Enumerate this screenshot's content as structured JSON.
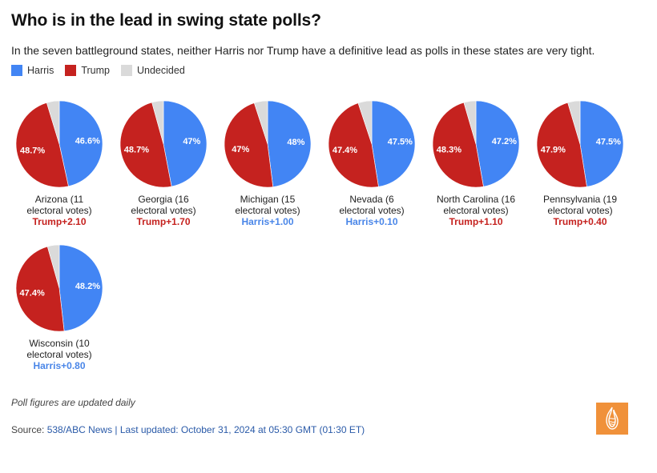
{
  "header": {
    "title": "Who is in the lead in swing state polls?",
    "subtitle": "In the seven battleground states, neither Harris nor Trump have a definitive lead as polls in these states are very tight."
  },
  "legend": [
    {
      "label": "Harris",
      "color": "#4285F4"
    },
    {
      "label": "Trump",
      "color": "#C5221F"
    },
    {
      "label": "Undecided",
      "color": "#DADADA"
    }
  ],
  "chart_data": {
    "type": "pie",
    "title": "Who is in the lead in swing state polls?",
    "series_names": [
      "Harris",
      "Trump",
      "Undecided"
    ],
    "colors": {
      "Harris": "#4285F4",
      "Trump": "#C5221F",
      "Undecided": "#DADADA",
      "lead_harris": "#4A86E8",
      "lead_trump": "#C5221F"
    },
    "legend_position": "top-left",
    "states": [
      {
        "name_line1": "Arizona (11",
        "name_line2": "electoral votes)",
        "harris": 46.6,
        "trump": 48.7,
        "harris_label": "46.6%",
        "trump_label": "48.7%",
        "lead": "Trump+2.10",
        "leader": "trump"
      },
      {
        "name_line1": "Georgia (16",
        "name_line2": "electoral votes)",
        "harris": 47,
        "trump": 48.7,
        "harris_label": "47%",
        "trump_label": "48.7%",
        "lead": "Trump+1.70",
        "leader": "trump"
      },
      {
        "name_line1": "Michigan (15",
        "name_line2": "electoral votes)",
        "harris": 48,
        "trump": 47,
        "harris_label": "48%",
        "trump_label": "47%",
        "lead": "Harris+1.00",
        "leader": "harris"
      },
      {
        "name_line1": "Nevada (6",
        "name_line2": "electoral votes)",
        "harris": 47.5,
        "trump": 47.4,
        "harris_label": "47.5%",
        "trump_label": "47.4%",
        "lead": "Harris+0.10",
        "leader": "harris"
      },
      {
        "name_line1": "North Carolina (16",
        "name_line2": "electoral votes)",
        "harris": 47.2,
        "trump": 48.3,
        "harris_label": "47.2%",
        "trump_label": "48.3%",
        "lead": "Trump+1.10",
        "leader": "trump"
      },
      {
        "name_line1": "Pennsylvania (19",
        "name_line2": "electoral votes)",
        "harris": 47.5,
        "trump": 47.9,
        "harris_label": "47.5%",
        "trump_label": "47.9%",
        "lead": "Trump+0.40",
        "leader": "trump"
      },
      {
        "name_line1": "Wisconsin (10",
        "name_line2": "electoral votes)",
        "harris": 48.2,
        "trump": 47.4,
        "harris_label": "48.2%",
        "trump_label": "47.4%",
        "lead": "Harris+0.80",
        "leader": "harris"
      }
    ]
  },
  "footer": {
    "note": "Poll figures are updated daily",
    "source_prefix": "Source: ",
    "source_link": "538/ABC News | Last updated: October 31, 2024 at 05:30 GMT (01:30 ET)",
    "logo": "al-jazeera-logo"
  }
}
